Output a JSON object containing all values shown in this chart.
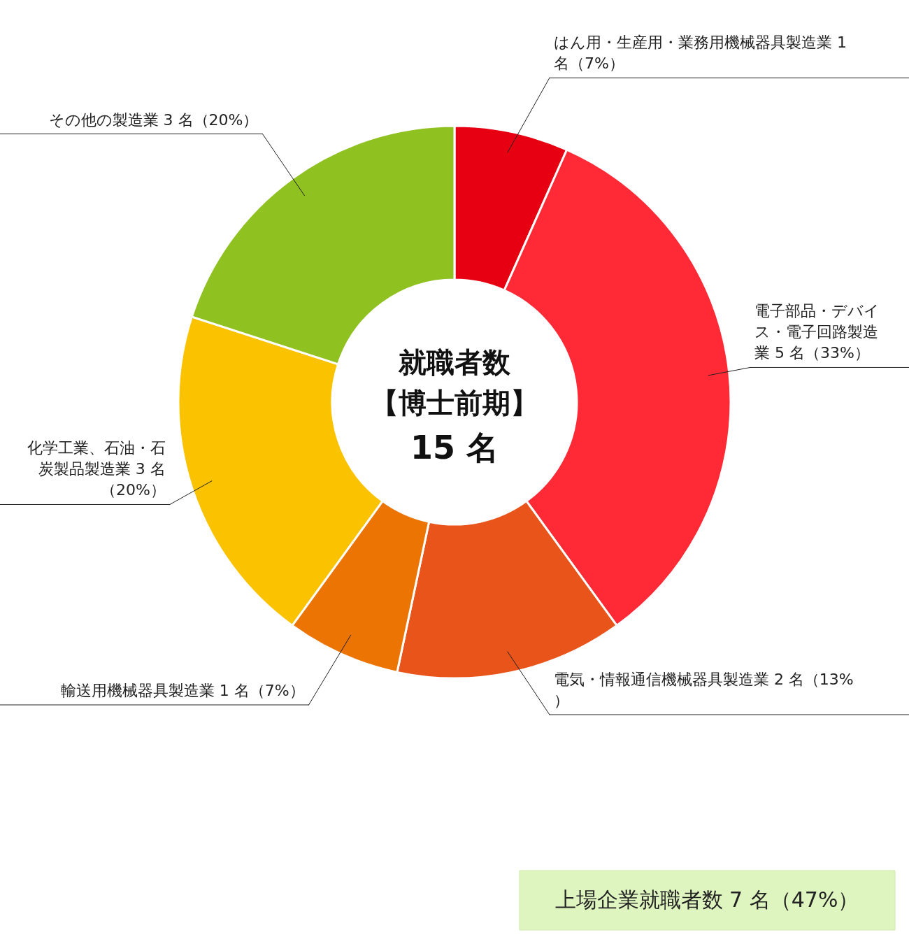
{
  "chart_data": {
    "type": "donut",
    "title": "就職者数",
    "subtitle": "【博士前期】",
    "categories": [
      "はん用・生産用・業務用機械器具製造業",
      "電子部品・デバイス・電子回路製造業",
      "電気・情報通信機械器具製造業",
      "輸送用機械器具製造業",
      "化学工業、石油・石炭製品製造業",
      "その他の製造業"
    ],
    "values": [
      1,
      5,
      2,
      1,
      3,
      3
    ],
    "value_labels": [
      "1 名（7%）",
      "5 名（33%）",
      "2 名（13%）",
      "1 名（7%）",
      "3 名（20%）",
      "3 名（20%）"
    ],
    "colors": [
      "#e60012",
      "#ff2a35",
      "#e8541a",
      "#ec7403",
      "#fbc200",
      "#8fc120"
    ],
    "annotations": [
      "15 名",
      "上場企業就職者数 7 名（47%）"
    ]
  }
}
